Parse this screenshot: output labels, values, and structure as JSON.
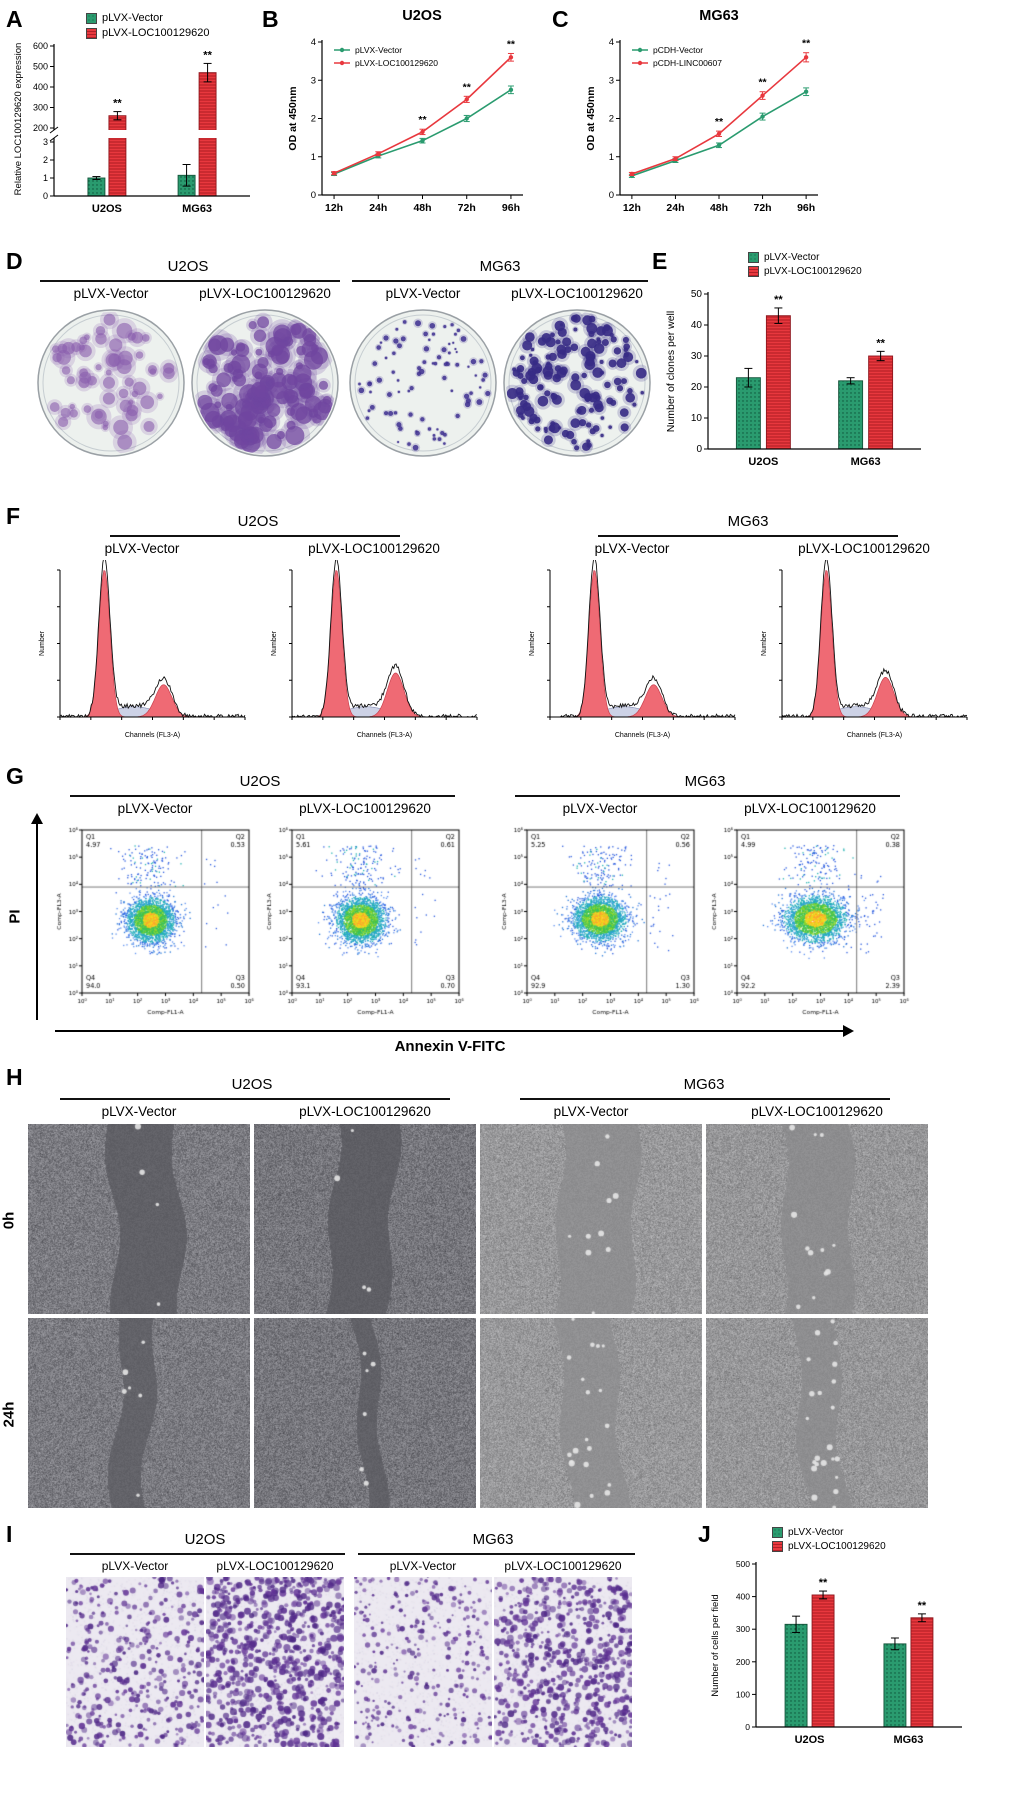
{
  "colors": {
    "green": "#2a9b6f",
    "red": "#e8383e",
    "hist_fill": "#ef6a74",
    "colony_purple": "#70459f"
  },
  "common": {
    "cells": [
      "U2OS",
      "MG63"
    ],
    "conditions": [
      "pLVX-Vector",
      "pLVX-LOC100129620"
    ]
  },
  "panels": {
    "A": {
      "label": "A"
    },
    "B": {
      "label": "B"
    },
    "C": {
      "label": "C"
    },
    "D": {
      "label": "D"
    },
    "E": {
      "label": "E"
    },
    "F": {
      "label": "F",
      "xlabel": "Channels (FL3-A)",
      "ylabel": "Number"
    },
    "G": {
      "label": "G",
      "xlabel": "Comp-FL1-A",
      "ylabel": "Comp-FL3-A",
      "axis_x": "Annexin V-FITC",
      "axis_y": "PI",
      "quadrant_names": [
        "Q1",
        "Q2",
        "Q3",
        "Q4"
      ],
      "tick_labels": [
        "10⁰",
        "10¹",
        "10²",
        "10³",
        "10⁴",
        "10⁵",
        "10⁶"
      ],
      "plots": [
        {
          "q1": "4.97",
          "q2": "0.53",
          "q3": "0.50",
          "q4": "94.0"
        },
        {
          "q1": "5.61",
          "q2": "0.61",
          "q3": "0.70",
          "q4": "93.1"
        },
        {
          "q1": "5.25",
          "q2": "0.56",
          "q3": "1.30",
          "q4": "92.9"
        },
        {
          "q1": "4.99",
          "q2": "0.38",
          "q3": "2.39",
          "q4": "92.2"
        }
      ]
    },
    "H": {
      "label": "H",
      "rows": [
        "0h",
        "24h"
      ]
    },
    "I": {
      "label": "I"
    },
    "J": {
      "label": "J"
    }
  },
  "chart_data": [
    {
      "id": "A",
      "type": "bar",
      "ylabel": "Relative LOC100129620 expression",
      "categories": [
        "U2OS",
        "MG63"
      ],
      "series": [
        {
          "name": "pLVX-Vector",
          "color": "green",
          "values": [
            1.0,
            1.15
          ],
          "errors": [
            0.08,
            0.6
          ]
        },
        {
          "name": "pLVX-LOC100129620",
          "color": "red",
          "values": [
            260,
            470
          ],
          "errors": [
            20,
            45
          ]
        }
      ],
      "sig": [
        "**",
        "**"
      ],
      "broken_axis": {
        "lower_ticks": [
          0,
          1,
          2,
          3
        ],
        "upper_ticks": [
          200,
          300,
          400,
          500,
          600
        ]
      }
    },
    {
      "id": "B",
      "type": "line",
      "title": "U2OS",
      "ylabel": "OD at 450nm",
      "x": [
        "12h",
        "24h",
        "48h",
        "72h",
        "96h"
      ],
      "ylim": [
        0,
        4
      ],
      "yticks": [
        0,
        1,
        2,
        3,
        4
      ],
      "series": [
        {
          "name": "pLVX-Vector",
          "color": "green",
          "values": [
            0.55,
            1.02,
            1.42,
            2.0,
            2.75
          ],
          "errors": [
            0.04,
            0.05,
            0.06,
            0.08,
            0.1
          ]
        },
        {
          "name": "pLVX-LOC100129620",
          "color": "red",
          "values": [
            0.57,
            1.08,
            1.65,
            2.5,
            3.6
          ],
          "errors": [
            0.04,
            0.05,
            0.07,
            0.08,
            0.1
          ]
        }
      ],
      "sig": [
        null,
        null,
        "**",
        "**",
        "**"
      ]
    },
    {
      "id": "C",
      "type": "line",
      "title": "MG63",
      "ylabel": "OD at 450nm",
      "x": [
        "12h",
        "24h",
        "48h",
        "72h",
        "96h"
      ],
      "ylim": [
        0,
        4
      ],
      "yticks": [
        0,
        1,
        2,
        3,
        4
      ],
      "series": [
        {
          "name": "pCDH-Vector",
          "color": "green",
          "values": [
            0.5,
            0.9,
            1.3,
            2.05,
            2.7
          ],
          "errors": [
            0.04,
            0.05,
            0.06,
            0.09,
            0.1
          ]
        },
        {
          "name": "pCDH-LINC00607",
          "color": "red",
          "values": [
            0.55,
            0.95,
            1.6,
            2.6,
            3.6
          ],
          "errors": [
            0.04,
            0.05,
            0.07,
            0.1,
            0.12
          ]
        }
      ],
      "sig": [
        null,
        null,
        "**",
        "**",
        "**"
      ]
    },
    {
      "id": "E",
      "type": "bar",
      "ylabel": "Number of clones per well",
      "categories": [
        "U2OS",
        "MG63"
      ],
      "ylim": [
        0,
        50
      ],
      "yticks": [
        0,
        10,
        20,
        30,
        40,
        50
      ],
      "series": [
        {
          "name": "pLVX-Vector",
          "color": "green",
          "values": [
            23,
            22
          ],
          "errors": [
            3,
            1
          ]
        },
        {
          "name": "pLVX-LOC100129620",
          "color": "red",
          "values": [
            43,
            30
          ],
          "errors": [
            2.5,
            1.5
          ]
        }
      ],
      "sig": [
        "**",
        "**"
      ]
    },
    {
      "id": "J",
      "type": "bar",
      "ylabel": "Number of cells per field",
      "categories": [
        "U2OS",
        "MG63"
      ],
      "ylim": [
        0,
        500
      ],
      "yticks": [
        0,
        100,
        200,
        300,
        400,
        500
      ],
      "series": [
        {
          "name": "pLVX-Vector",
          "color": "green",
          "values": [
            315,
            255
          ],
          "errors": [
            25,
            18
          ]
        },
        {
          "name": "pLVX-LOC100129620",
          "color": "red",
          "values": [
            405,
            335
          ],
          "errors": [
            12,
            12
          ]
        }
      ],
      "sig": [
        "**",
        "**"
      ]
    }
  ]
}
